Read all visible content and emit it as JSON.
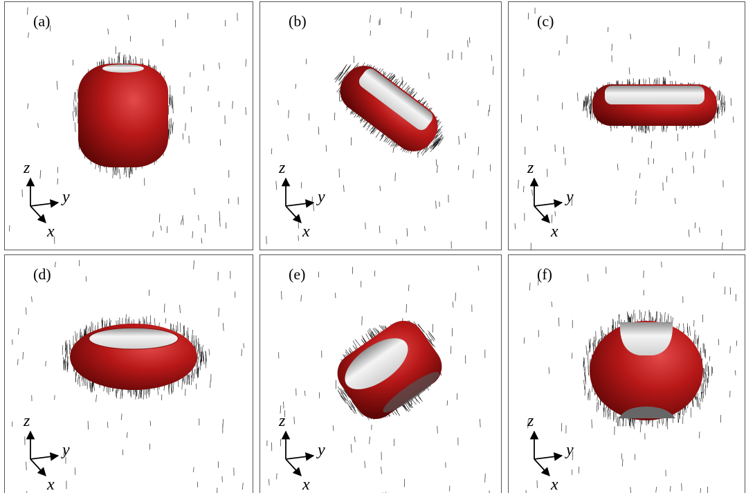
{
  "panels": [
    {
      "label": "(a)",
      "axes": {
        "z": "z",
        "y": "y",
        "x": "x"
      }
    },
    {
      "label": "(b)",
      "axes": {
        "z": "z",
        "y": "y",
        "x": "x"
      }
    },
    {
      "label": "(c)",
      "axes": {
        "z": "z",
        "y": "y",
        "x": "x"
      }
    },
    {
      "label": "(d)",
      "axes": {
        "z": "z",
        "y": "y",
        "x": "x"
      }
    },
    {
      "label": "(e)",
      "axes": {
        "z": "z",
        "y": "y",
        "x": "x"
      }
    },
    {
      "label": "(f)",
      "axes": {
        "z": "z",
        "y": "y",
        "x": "x"
      }
    }
  ]
}
